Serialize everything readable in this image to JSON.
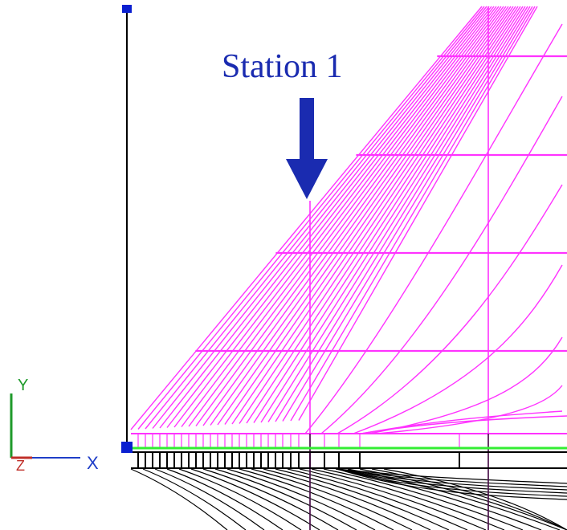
{
  "annotation": {
    "label": "Station 1",
    "color": "#1a2bb0"
  },
  "axes_triad": {
    "x_label": "X",
    "y_label": "Y",
    "z_label": "Z",
    "x_color": "#1f3ec8",
    "y_color": "#1e9a2a",
    "z_color": "#c0302a"
  },
  "colors": {
    "surface_grid": "#ff33ff",
    "waterline": "#33ee33",
    "hull_lines": "#000000",
    "marker": "#0a1fd0"
  },
  "icons": {
    "arrow": "down-arrow-icon",
    "triad": "xyz-axes-icon",
    "marker": "square-handle-icon"
  }
}
